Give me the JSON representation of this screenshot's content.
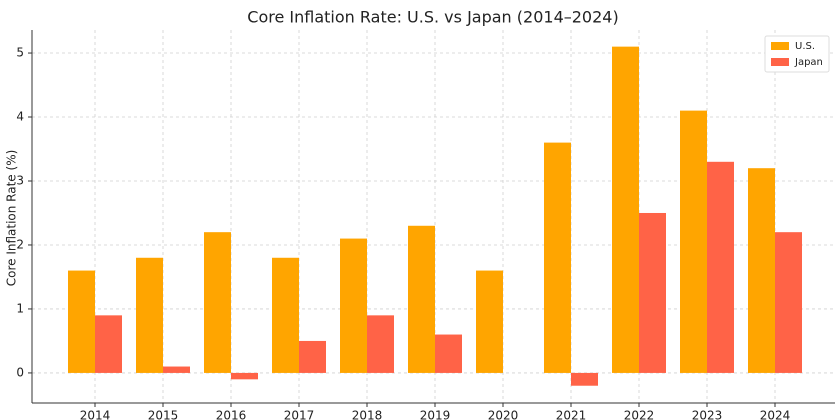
{
  "chart_data": {
    "type": "bar",
    "title": "Core Inflation Rate: U.S. vs Japan (2014–2024)",
    "ylabel": "Core Inflation Rate (%)",
    "categories": [
      "2014",
      "2015",
      "2016",
      "2017",
      "2018",
      "2019",
      "2020",
      "2021",
      "2022",
      "2023",
      "2024"
    ],
    "series": [
      {
        "name": "U.S.",
        "color": "#ffa500",
        "values": [
          1.6,
          1.8,
          2.2,
          1.8,
          2.1,
          2.3,
          1.6,
          3.6,
          5.1,
          4.1,
          3.2
        ]
      },
      {
        "name": "Japan",
        "color": "#ff6347",
        "values": [
          0.9,
          0.1,
          -0.1,
          0.5,
          0.9,
          0.6,
          0,
          -0.2,
          2.5,
          3.3,
          2.2
        ]
      }
    ],
    "ylim": [
      -0.47,
      5.36
    ],
    "yticks": [
      0,
      1,
      2,
      3,
      4,
      5
    ],
    "grid": true,
    "legend": "upper right"
  }
}
